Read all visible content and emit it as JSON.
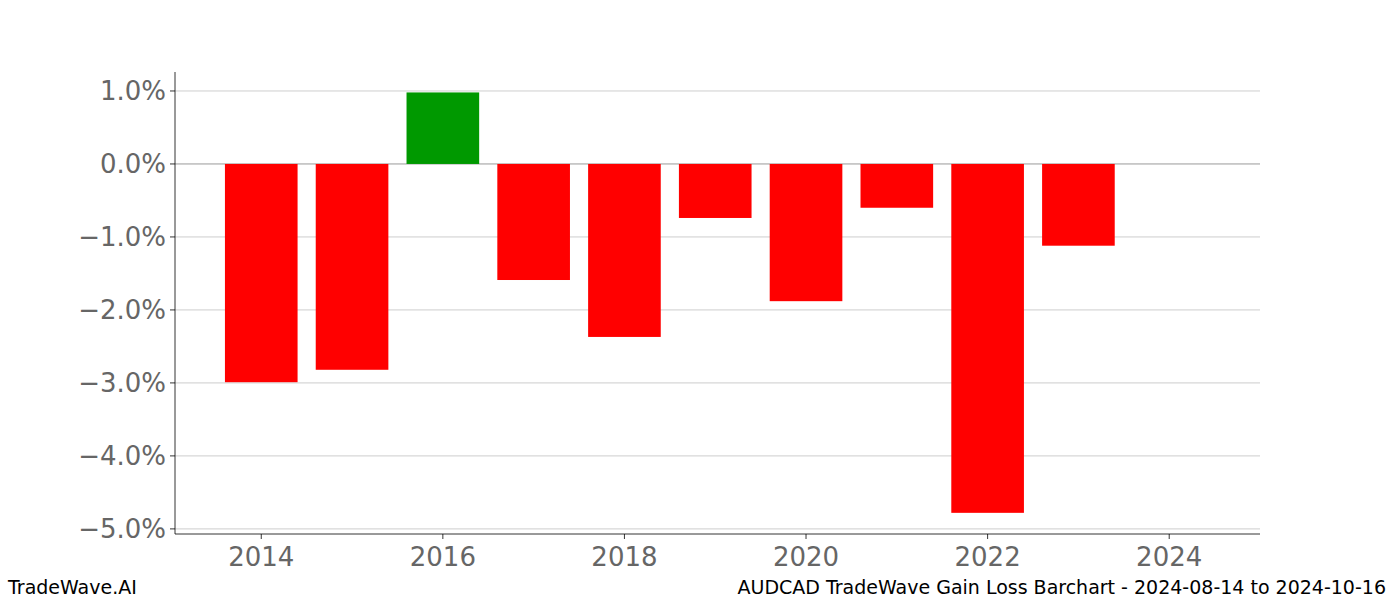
{
  "chart_data": {
    "type": "bar",
    "title": "AUDCAD TradeWave Gain Loss Barchart - 2024-08-14 to 2024-10-16",
    "annotations": [
      "TradeWave.AI"
    ],
    "x": [
      2014,
      2015,
      2016,
      2017,
      2018,
      2019,
      2020,
      2021,
      2022,
      2023
    ],
    "values": [
      -2.99,
      -2.82,
      0.98,
      -1.59,
      -2.37,
      -0.74,
      -1.88,
      -0.6,
      -4.78,
      -1.12
    ],
    "colors": [
      "#ff0000",
      "#ff0000",
      "#009900",
      "#ff0000",
      "#ff0000",
      "#ff0000",
      "#ff0000",
      "#ff0000",
      "#ff0000",
      "#ff0000"
    ],
    "xlim": [
      2013.05,
      2025.0
    ],
    "xticks": [
      2014,
      2016,
      2018,
      2020,
      2022,
      2024
    ],
    "ylim": [
      -5.07,
      1.26
    ],
    "yticks": [
      {
        "value": -5,
        "label": "−5.0%"
      },
      {
        "value": -4,
        "label": "−4.0%"
      },
      {
        "value": -3,
        "label": "−3.0%"
      },
      {
        "value": -2,
        "label": "−2.0%"
      },
      {
        "value": -1,
        "label": "−1.0%"
      },
      {
        "value": 0,
        "label": "0.0%"
      },
      {
        "value": 1,
        "label": "1.0%"
      }
    ],
    "grid": true
  }
}
